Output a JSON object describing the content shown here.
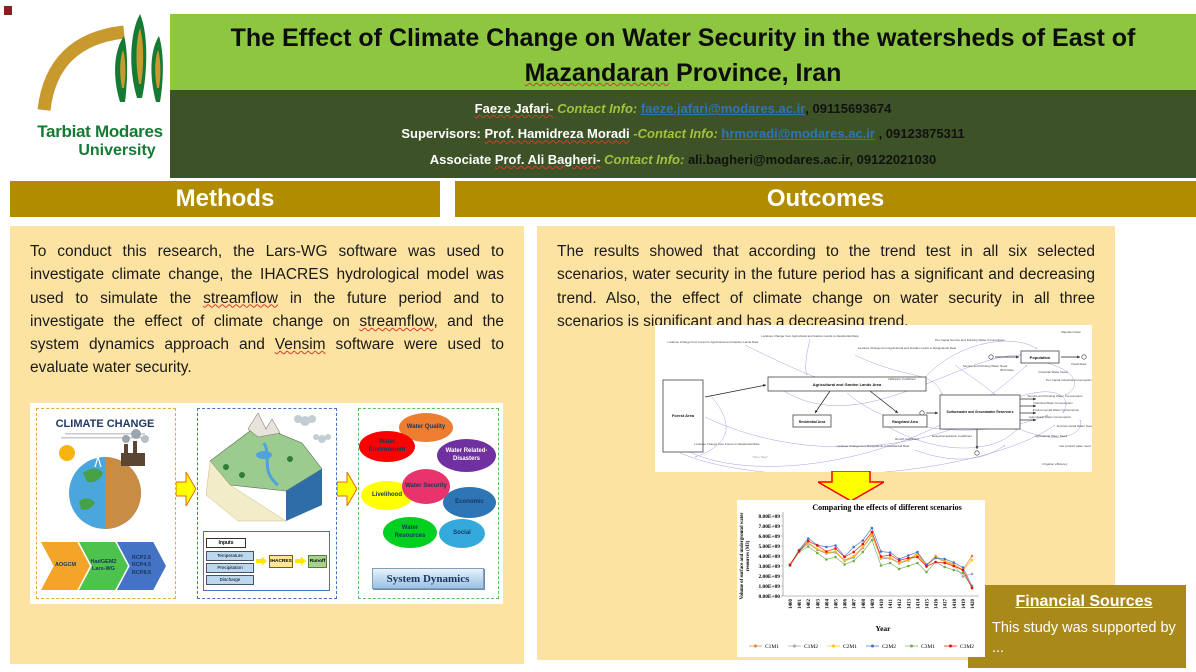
{
  "university": {
    "name_line1": "Tarbiat Modares",
    "name_line2": "University"
  },
  "title": {
    "line1": "The Effect of Climate Change on Water Security in the watersheds of  East of",
    "misspelled": "Mazandaran",
    "line2_rest": " Province, Iran"
  },
  "authors": {
    "line1": {
      "name": "Faeze  Jafari-",
      "contact_label": "Contact Info:",
      "email": "faeze.jafari@modares.ac.ir",
      "phone": ", 09115693674"
    },
    "line2": {
      "prefix": "Supervisors: ",
      "name": "Prof. Hamidreza Moradi",
      "contact_label": "-Contact Info:",
      "email": "hrmoradi@modares.ac.ir",
      "phone": " , 09123875311"
    },
    "line3": {
      "prefix": "Associate ",
      "name": "Prof. Ali Bagheri-",
      "contact_label": "Contact Info:",
      "contact_rest": "ali.bagheri@modares.ac.ir, 09122021030"
    }
  },
  "methods": {
    "header": "Methods",
    "p": {
      "s1": "To conduct this research, the Lars-WG software was used to investigate climate change, the IHACRES hydrological model was used to simulate the ",
      "w1": "streamflow",
      "s2": " in the future period and to investigate the effect of climate change on ",
      "w2": "streamflow",
      "s3": ", and the system dynamics approach and ",
      "w3": "Vensim",
      "s4": " software were used to evaluate water security."
    },
    "figure": {
      "climate": {
        "title": "CLIMATE CHANGE",
        "chevron1": "AOGCM",
        "chevron2": "HadGEM2\nLars-WG",
        "chevron3": "RCP2.6\nRCP4.5\nRCP8.5"
      },
      "ihacres": {
        "inputs_header": "Inputs",
        "input1": "Temperature",
        "input2": "Precipitation",
        "input3": "Discharge",
        "model": "IHACRES",
        "output": "Runoff"
      },
      "sd": {
        "b_quality": "Water Quality",
        "b_disasters": "Water Related-Disasters",
        "b_environment": "Water Environment",
        "b_livelihood": "Livelihood",
        "b_economic": "Economic",
        "b_resources": "Water Resources",
        "b_social": "Social",
        "center": "Water Security",
        "caption": "System Dynamics"
      }
    }
  },
  "outcomes": {
    "header": "Outcomes",
    "p": "The results showed that according to the trend test in all six selected scenarios, water security in the future period has a significant and decreasing trend. Also, the effect of climate change on water security in all three scenarios is significant and has a decreasing trend."
  },
  "sd_diagram": {
    "boxes": [
      "Forest Area",
      "Agricultural and Garden Lands Area",
      "Residential Area",
      "Rangeland Area",
      "Surfacewater and Groundwater Reservoirs",
      "Population"
    ],
    "labels": [
      "Landuse Change from Forest to Agricultural and Garden Lands Rate",
      "Landuse Change from Agricultural and Garden Lands to Residential Rate",
      "Landuse Change from Agricultural and Garden Lands to Rangelands Rate",
      "Landuse Change from Forest to Residential Rate",
      "Landuse Change from Rangelands to Residential Rate",
      "<Time Step>",
      "Migration Rate",
      "Death Rate",
      "Birth Rate",
      "Per Capita Service and Drinking Water Consumption",
      "Per Capita Industrial Consumption",
      "Industrial Water Need",
      "Infiltration Coefficient",
      "Runoff Coefficient",
      "Evapotranspiration Coefficient",
      "Service and Drinking Water Consumption",
      "Industrial Water Consumption",
      "Environmental Water Consumption",
      "Agricultural Water Consumption",
      "Agricultural Water Need",
      "Environmental Water Need",
      "Irrigation efficiency",
      "Net product water need",
      "Service and Drinking Water Need"
    ]
  },
  "financial": {
    "header": "Financial Sources",
    "text": "This study was supported by ..."
  },
  "chart_data": {
    "type": "line",
    "title": "Comparing the effects of different scenarios",
    "xlabel": "Year",
    "ylabel": "Volume of surface and underground water resources (M3)",
    "ylabel_lines": [
      "Volume of surface and underground water",
      "resources (M3)"
    ],
    "x": [
      1400,
      1401,
      1402,
      1403,
      1404,
      1405,
      1406,
      1407,
      1408,
      1409,
      1410,
      1411,
      1412,
      1413,
      1414,
      1415,
      1416,
      1417,
      1418,
      1419,
      1420
    ],
    "ylim": [
      0,
      8000000000.0
    ],
    "ytick_labels": [
      "0.00E+00",
      "1.00E+09",
      "2.00E+09",
      "3.00E+09",
      "4.00E+09",
      "5.00E+09",
      "6.00E+09",
      "7.00E+09",
      "8.00E+09"
    ],
    "legend_position": "bottom",
    "grid": false,
    "series": [
      {
        "name": "C1M1",
        "color": "#ED7D31",
        "values": [
          3100000000.0,
          4550000000.0,
          5300000000.0,
          4650000000.0,
          4300000000.0,
          4400000000.0,
          3550000000.0,
          3900000000.0,
          4850000000.0,
          6100000000.0,
          3800000000.0,
          3800000000.0,
          3300000000.0,
          3600000000.0,
          4300000000.0,
          3100000000.0,
          4000000000.0,
          3500000000.0,
          3200000000.0,
          2600000000.0,
          4000000000.0
        ]
      },
      {
        "name": "C1M2",
        "color": "#A5A5A5",
        "values": [
          3050000000.0,
          4450000000.0,
          5250000000.0,
          4600000000.0,
          4250000000.0,
          4350000000.0,
          3500000000.0,
          3850000000.0,
          4800000000.0,
          6050000000.0,
          3750000000.0,
          3750000000.0,
          3250000000.0,
          3550000000.0,
          4100000000.0,
          3000000000.0,
          3850000000.0,
          3400000000.0,
          3100000000.0,
          1950000000.0,
          2200000000.0
        ]
      },
      {
        "name": "C2M1",
        "color": "#FFC000",
        "values": [
          3100000000.0,
          4500000000.0,
          5350000000.0,
          4700000000.0,
          4350000000.0,
          4450000000.0,
          3600000000.0,
          4000000000.0,
          4900000000.0,
          6150000000.0,
          3850000000.0,
          3850000000.0,
          3350000000.0,
          3650000000.0,
          4200000000.0,
          3050000000.0,
          3900000000.0,
          3450000000.0,
          3150000000.0,
          2550000000.0,
          3600000000.0
        ]
      },
      {
        "name": "C2M2",
        "color": "#4472C4",
        "values": [
          3150000000.0,
          4600000000.0,
          5750000000.0,
          5100000000.0,
          4900000000.0,
          5050000000.0,
          3950000000.0,
          4900000000.0,
          5550000000.0,
          6800000000.0,
          4450000000.0,
          4350000000.0,
          3700000000.0,
          4050000000.0,
          4400000000.0,
          3150000000.0,
          3800000000.0,
          3700000000.0,
          3350000000.0,
          2850000000.0,
          1000000000.0
        ]
      },
      {
        "name": "C3M1",
        "color": "#70AD47",
        "values": [
          3050000000.0,
          4400000000.0,
          4950000000.0,
          4300000000.0,
          3650000000.0,
          3900000000.0,
          3150000000.0,
          3500000000.0,
          4400000000.0,
          5600000000.0,
          3050000000.0,
          3300000000.0,
          2700000000.0,
          3000000000.0,
          3300000000.0,
          2400000000.0,
          3400000000.0,
          2900000000.0,
          2600000000.0,
          2300000000.0,
          900000000.0
        ]
      },
      {
        "name": "C3M2",
        "color": "#FF0000",
        "values": [
          3100000000.0,
          4500000000.0,
          5500000000.0,
          5050000000.0,
          4450000000.0,
          4750000000.0,
          3900000000.0,
          4400000000.0,
          5200000000.0,
          6400000000.0,
          3950000000.0,
          4100000000.0,
          3550000000.0,
          3800000000.0,
          3900000000.0,
          2950000000.0,
          3400000000.0,
          3300000000.0,
          3000000000.0,
          2600000000.0,
          800000000.0
        ]
      }
    ]
  }
}
